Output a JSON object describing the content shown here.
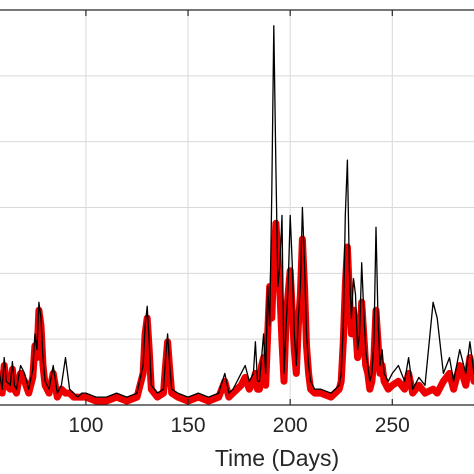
{
  "chart_data": {
    "type": "line",
    "title": "",
    "xlabel": "Time (Days)",
    "ylabel": "",
    "xlim": [
      55,
      290
    ],
    "ylim": [
      0,
      100
    ],
    "grid": true,
    "x_ticks": [
      100,
      150,
      200,
      250
    ],
    "x_tick_labels": [
      "100",
      "150",
      "200",
      "250"
    ],
    "legend": "none",
    "series": [
      {
        "style": "thick red line",
        "color": "#ee0000",
        "x": [
          55,
          57,
          59,
          60,
          61,
          63,
          64,
          65,
          66,
          67,
          68,
          70,
          72,
          74,
          75,
          76,
          77,
          78,
          79,
          80,
          82,
          84,
          86,
          88,
          90,
          92,
          94,
          96,
          98,
          100,
          105,
          110,
          115,
          120,
          125,
          128,
          129,
          130,
          131,
          132,
          135,
          138,
          139,
          140,
          141,
          142,
          145,
          150,
          155,
          160,
          165,
          168,
          170,
          172,
          174,
          176,
          178,
          180,
          182,
          183,
          184,
          185,
          186,
          187,
          188,
          189,
          190,
          191,
          192,
          193,
          194,
          195,
          196,
          197,
          198,
          199,
          200,
          201,
          202,
          203,
          204,
          205,
          206,
          207,
          208,
          209,
          210,
          212,
          215,
          220,
          224,
          225,
          226,
          227,
          228,
          229,
          230,
          231,
          232,
          233,
          234,
          235,
          236,
          237,
          238,
          239,
          240,
          241,
          242,
          243,
          244,
          245,
          246,
          248,
          250,
          253,
          256,
          258,
          260,
          263,
          266,
          270,
          272,
          275,
          278,
          280,
          283,
          286,
          288,
          290
        ],
        "y": [
          4,
          8,
          3,
          10,
          5,
          4,
          9,
          4,
          3,
          6,
          8,
          6,
          3,
          7,
          15,
          12,
          24,
          20,
          10,
          5,
          3,
          8,
          2,
          4,
          3,
          3,
          2,
          2,
          2,
          2,
          1,
          1,
          2,
          1,
          2,
          8,
          18,
          22,
          14,
          4,
          2,
          3,
          10,
          16,
          9,
          3,
          2,
          1,
          2,
          1,
          2,
          6,
          2,
          3,
          4,
          5,
          7,
          4,
          6,
          8,
          4,
          4,
          10,
          12,
          5,
          18,
          30,
          22,
          36,
          46,
          38,
          28,
          16,
          6,
          22,
          28,
          34,
          24,
          14,
          8,
          20,
          28,
          42,
          30,
          15,
          8,
          4,
          3,
          3,
          2,
          4,
          6,
          16,
          30,
          40,
          28,
          18,
          24,
          20,
          12,
          14,
          26,
          18,
          10,
          8,
          4,
          6,
          12,
          24,
          16,
          8,
          10,
          6,
          4,
          5,
          6,
          4,
          8,
          3,
          5,
          3,
          4,
          3,
          6,
          8,
          4,
          10,
          5,
          12,
          6
        ]
      },
      {
        "style": "thin black line",
        "color": "#000000",
        "x": [
          55,
          57,
          59,
          60,
          61,
          63,
          64,
          65,
          66,
          67,
          68,
          70,
          72,
          74,
          75,
          76,
          77,
          78,
          79,
          80,
          82,
          84,
          86,
          88,
          90,
          92,
          94,
          96,
          98,
          100,
          105,
          110,
          115,
          120,
          125,
          128,
          129,
          130,
          131,
          132,
          135,
          138,
          139,
          140,
          141,
          142,
          145,
          150,
          155,
          160,
          165,
          168,
          170,
          172,
          174,
          176,
          178,
          180,
          182,
          183,
          184,
          185,
          186,
          187,
          188,
          189,
          190,
          191,
          192,
          193,
          194,
          195,
          196,
          197,
          198,
          199,
          200,
          201,
          202,
          203,
          204,
          205,
          206,
          207,
          208,
          209,
          210,
          212,
          215,
          220,
          224,
          225,
          226,
          227,
          228,
          229,
          230,
          231,
          232,
          233,
          234,
          235,
          236,
          237,
          238,
          239,
          240,
          241,
          242,
          243,
          244,
          245,
          246,
          248,
          250,
          253,
          256,
          258,
          260,
          263,
          266,
          270,
          272,
          275,
          278,
          280,
          283,
          286,
          288,
          290
        ],
        "y": [
          5,
          10,
          4,
          12,
          6,
          5,
          11,
          5,
          4,
          7,
          10,
          8,
          4,
          9,
          18,
          14,
          26,
          22,
          12,
          6,
          4,
          10,
          3,
          5,
          12,
          4,
          3,
          2,
          3,
          3,
          2,
          2,
          3,
          2,
          3,
          10,
          20,
          25,
          16,
          5,
          3,
          4,
          12,
          18,
          10,
          4,
          3,
          2,
          3,
          2,
          3,
          8,
          3,
          4,
          6,
          8,
          10,
          6,
          8,
          16,
          6,
          6,
          12,
          18,
          8,
          30,
          20,
          54,
          96,
          60,
          30,
          36,
          48,
          8,
          20,
          30,
          48,
          36,
          18,
          10,
          22,
          30,
          50,
          36,
          18,
          10,
          6,
          4,
          4,
          3,
          5,
          8,
          20,
          48,
          62,
          34,
          22,
          32,
          28,
          14,
          18,
          36,
          24,
          14,
          10,
          6,
          8,
          16,
          45,
          22,
          10,
          14,
          8,
          6,
          8,
          10,
          6,
          12,
          4,
          7,
          5,
          26,
          22,
          8,
          12,
          6,
          14,
          8,
          16,
          8
        ]
      }
    ]
  }
}
